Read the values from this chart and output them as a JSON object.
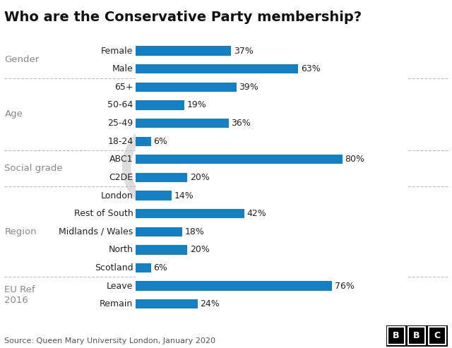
{
  "title": "Who are the Conservative Party membership?",
  "source": "Source: Queen Mary University London, January 2020",
  "bar_color": "#1380c4",
  "bg_color": "#ffffff",
  "category_color": "#888888",
  "label_color": "#222222",
  "sections": [
    {
      "category": "Gender",
      "items": [
        {
          "label": "Female",
          "value": 37
        },
        {
          "label": "Male",
          "value": 63
        }
      ]
    },
    {
      "category": "Age",
      "items": [
        {
          "label": "65+",
          "value": 39
        },
        {
          "label": "50-64",
          "value": 19
        },
        {
          "label": "25-49",
          "value": 36
        },
        {
          "label": "18-24",
          "value": 6
        }
      ]
    },
    {
      "category": "Social grade",
      "items": [
        {
          "label": "ABC1",
          "value": 80
        },
        {
          "label": "C2DE",
          "value": 20
        }
      ]
    },
    {
      "category": "Region",
      "items": [
        {
          "label": "London",
          "value": 14
        },
        {
          "label": "Rest of South",
          "value": 42
        },
        {
          "label": "Midlands / Wales",
          "value": 18
        },
        {
          "label": "North",
          "value": 20
        },
        {
          "label": "Scotland",
          "value": 6
        }
      ]
    },
    {
      "category": "EU Ref\n2016",
      "items": [
        {
          "label": "Leave",
          "value": 76
        },
        {
          "label": "Remain",
          "value": 24
        }
      ]
    }
  ],
  "figsize": [
    6.4,
    4.93
  ],
  "dpi": 100
}
